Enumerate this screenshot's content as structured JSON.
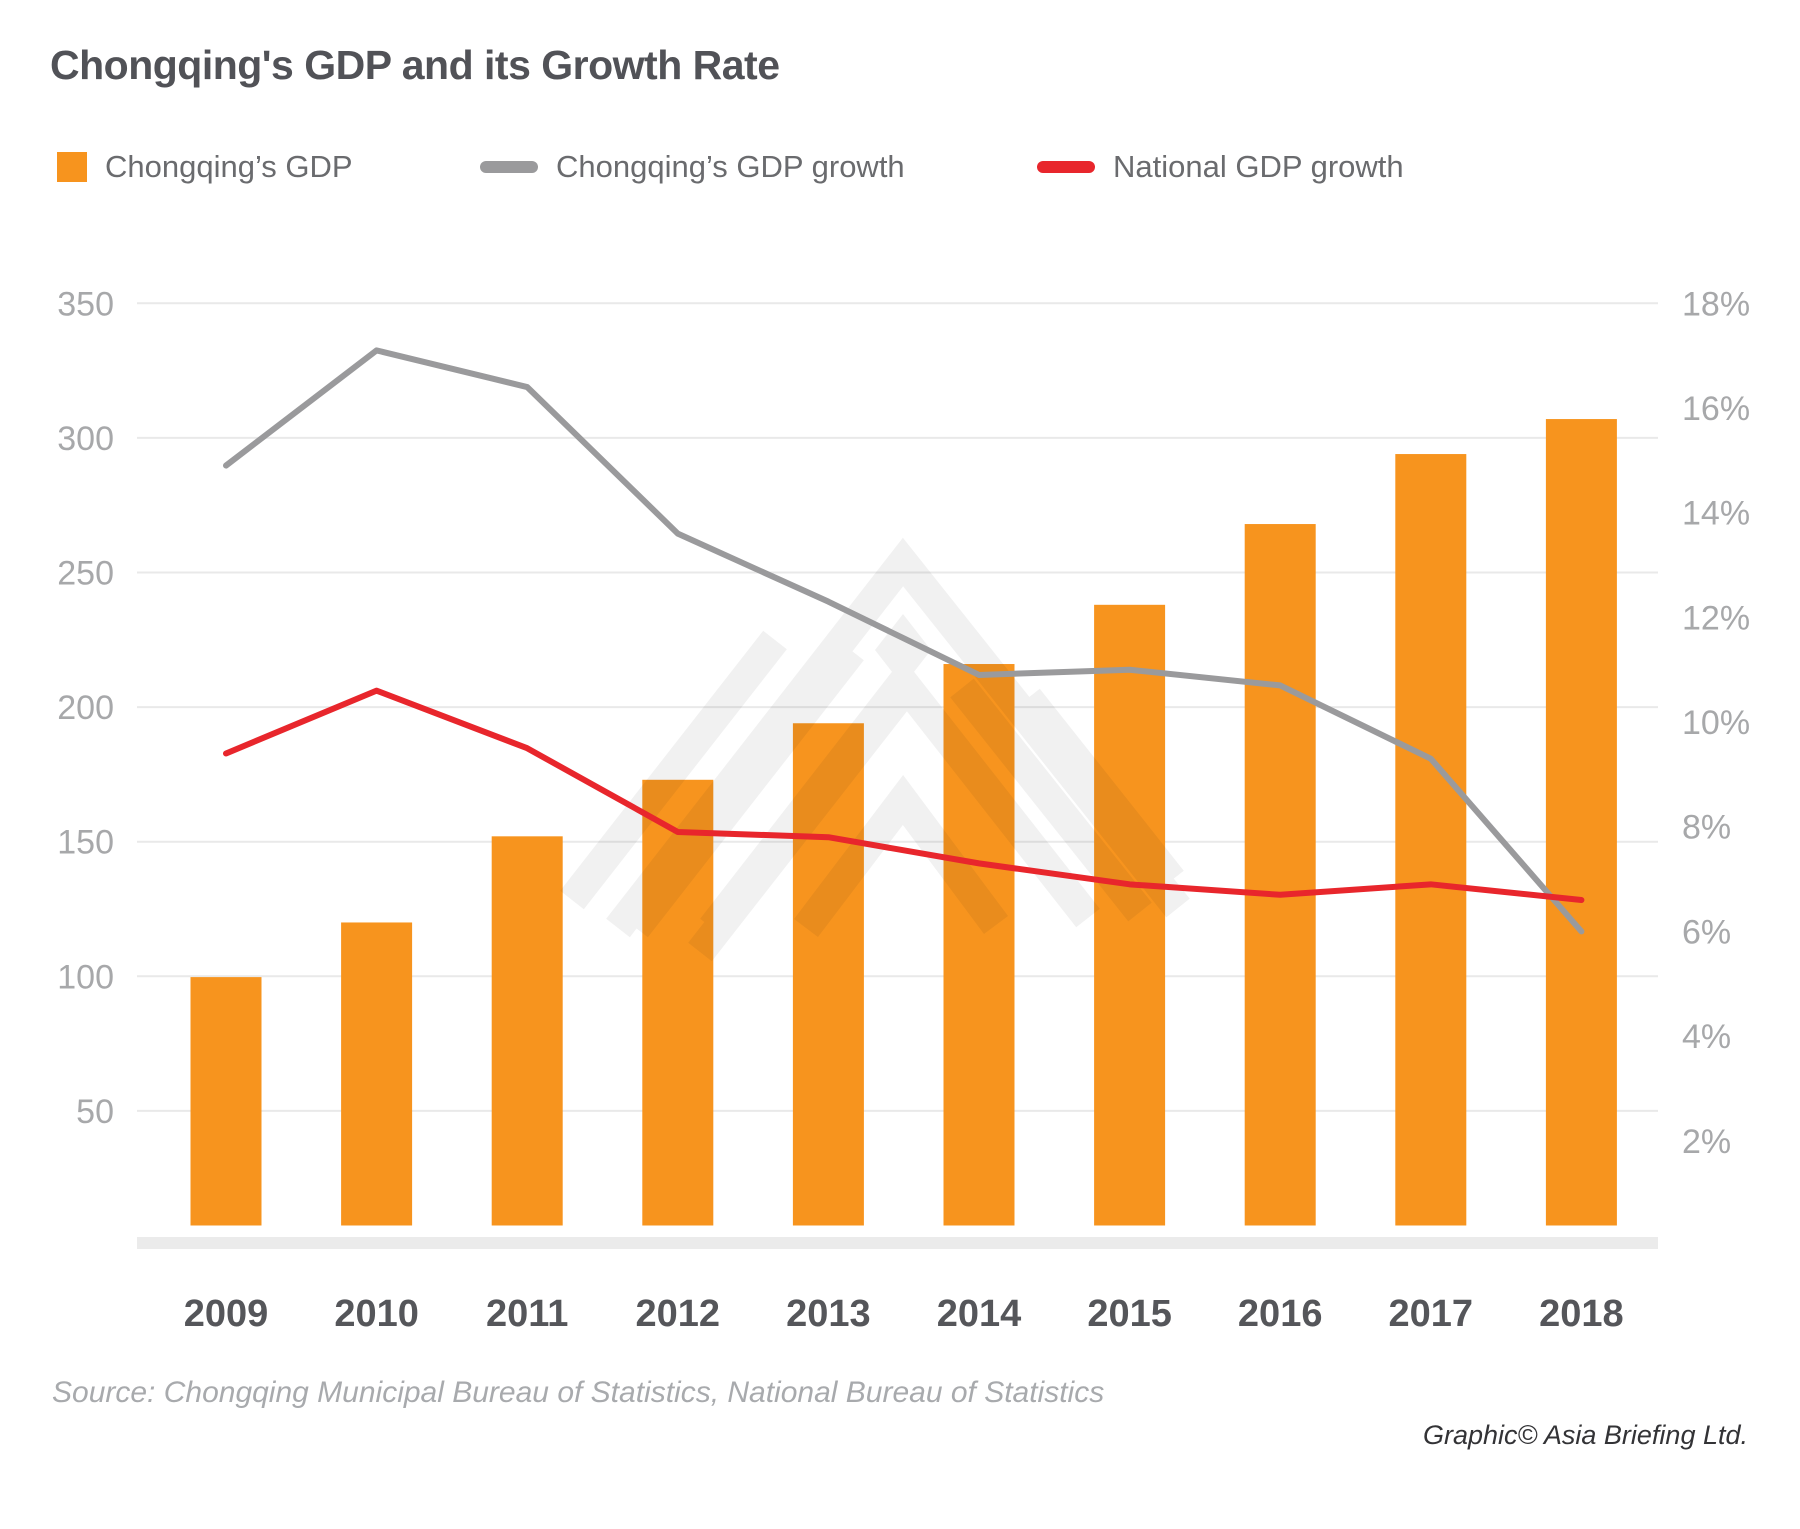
{
  "page": {
    "title": "Chongqing's GDP and its Growth Rate",
    "source": "Source: Chongqing Municipal Bureau of Statistics, National Bureau of Statistics",
    "credit": "Graphic© Asia Briefing Ltd."
  },
  "legend": [
    {
      "label": "Chongqing’s GDP",
      "color": "#F7941E",
      "swatch": "square"
    },
    {
      "label": "Chongqing’s GDP growth",
      "color": "#9A9A9C",
      "swatch": "line"
    },
    {
      "label": "National GDP growth",
      "color": "#E8262C",
      "swatch": "line"
    }
  ],
  "theme": {
    "grid_color": "#e9e9e9",
    "baseline_band_color": "#ebebeb",
    "axis_tick_color": "#a7a8aa",
    "year_label_color": "#55565a",
    "watermark_color": "#f1f1f1",
    "bar_color": "#F7941E",
    "chongqing_growth_color": "#9A9A9C",
    "national_growth_color": "#E8262C"
  },
  "chart_data": {
    "type": "bar",
    "subtype": "bar+line combo, dual axis",
    "title": "Chongqing's GDP and its Growth Rate",
    "categories": [
      "2009",
      "2010",
      "2011",
      "2012",
      "2013",
      "2014",
      "2015",
      "2016",
      "2017",
      "2018"
    ],
    "series": [
      {
        "name": "Chongqing’s GDP",
        "type": "bar",
        "axis": "left",
        "color": "#F7941E",
        "values": [
          99.7,
          120,
          152,
          173,
          194,
          216,
          238,
          268,
          294,
          307
        ]
      },
      {
        "name": "Chongqing’s GDP growth",
        "type": "line",
        "axis": "right",
        "color": "#9A9A9C",
        "values": [
          14.9,
          17.1,
          16.4,
          13.6,
          12.3,
          10.9,
          11.0,
          10.7,
          9.3,
          6.0
        ]
      },
      {
        "name": "National GDP growth",
        "type": "line",
        "axis": "right",
        "color": "#E8262C",
        "values": [
          9.4,
          10.6,
          9.5,
          7.9,
          7.8,
          7.3,
          6.9,
          6.7,
          6.9,
          6.6
        ]
      }
    ],
    "left_axis": {
      "ticks": [
        350,
        300,
        250,
        200,
        150,
        100,
        50
      ],
      "range": [
        0,
        350
      ]
    },
    "right_axis": {
      "ticks": [
        "18%",
        "16%",
        "14%",
        "12%",
        "10%",
        "8%",
        "6%",
        "4%",
        "2%"
      ],
      "range": [
        0,
        18
      ]
    },
    "grid": true,
    "legend_position": "top"
  }
}
